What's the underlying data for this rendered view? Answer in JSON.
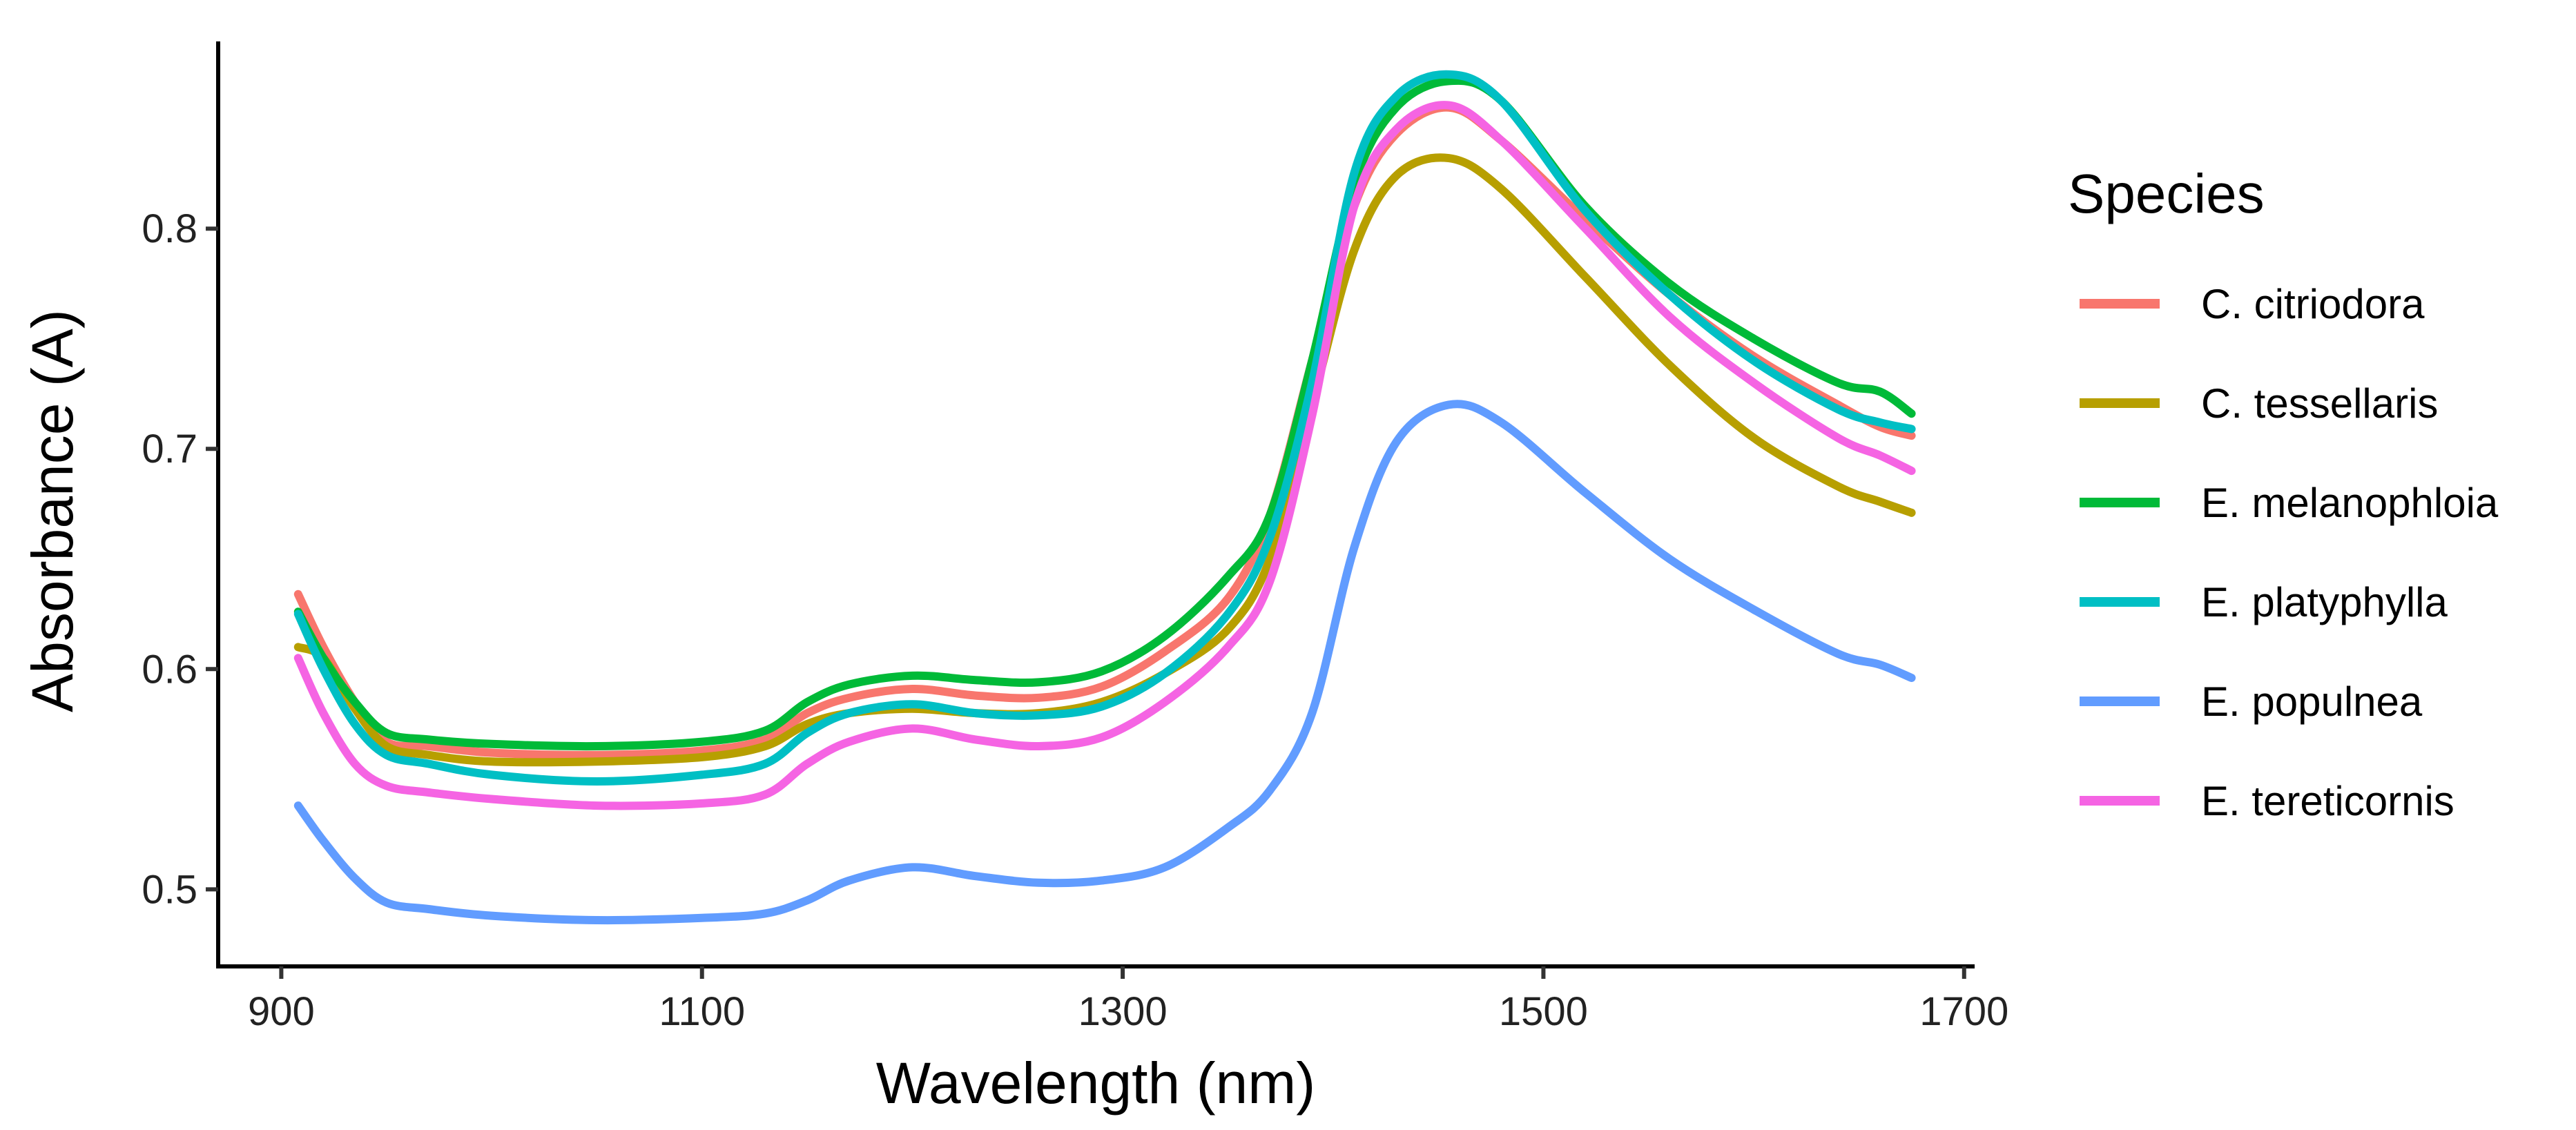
{
  "chart_data": {
    "type": "line",
    "title": "",
    "xlabel": "Wavelength (nm)",
    "ylabel": "Absorbance (A)",
    "xlim": [
      870,
      1705
    ],
    "ylim": [
      0.465,
      0.885
    ],
    "xticks": [
      900,
      1100,
      1300,
      1500,
      1700
    ],
    "xtick_labels": [
      "900",
      "1100",
      "1300",
      "1500",
      "1700"
    ],
    "yticks": [
      0.5,
      0.6,
      0.7,
      0.8
    ],
    "ytick_labels": [
      "0.5",
      "0.6",
      "0.7",
      "0.8"
    ],
    "grid": false,
    "legend": {
      "title": "Species",
      "placement": "right"
    },
    "x": [
      908,
      920,
      935,
      950,
      970,
      1000,
      1050,
      1100,
      1130,
      1150,
      1170,
      1200,
      1230,
      1260,
      1290,
      1320,
      1350,
      1370,
      1390,
      1410,
      1430,
      1455,
      1480,
      1520,
      1560,
      1600,
      1640,
      1660,
      1675
    ],
    "series": [
      {
        "name": "C. citriodora",
        "color": "#F8766D",
        "values": [
          0.634,
          0.61,
          0.585,
          0.567,
          0.565,
          0.562,
          0.561,
          0.563,
          0.568,
          0.58,
          0.587,
          0.591,
          0.588,
          0.587,
          0.592,
          0.608,
          0.632,
          0.67,
          0.74,
          0.81,
          0.843,
          0.855,
          0.84,
          0.804,
          0.77,
          0.742,
          0.72,
          0.71,
          0.706
        ]
      },
      {
        "name": "C. tessellaris",
        "color": "#B79F00",
        "values": [
          0.61,
          0.605,
          0.582,
          0.565,
          0.561,
          0.558,
          0.558,
          0.56,
          0.565,
          0.575,
          0.58,
          0.582,
          0.58,
          0.58,
          0.585,
          0.598,
          0.618,
          0.65,
          0.72,
          0.79,
          0.824,
          0.832,
          0.818,
          0.778,
          0.738,
          0.705,
          0.683,
          0.676,
          0.671
        ]
      },
      {
        "name": "E. melanophloia",
        "color": "#00BA38",
        "values": [
          0.626,
          0.605,
          0.585,
          0.571,
          0.568,
          0.566,
          0.565,
          0.567,
          0.572,
          0.585,
          0.593,
          0.597,
          0.595,
          0.594,
          0.599,
          0.615,
          0.642,
          0.67,
          0.74,
          0.82,
          0.855,
          0.867,
          0.858,
          0.81,
          0.775,
          0.75,
          0.73,
          0.726,
          0.716
        ]
      },
      {
        "name": "E. platyphylla",
        "color": "#00BFC4",
        "values": [
          0.625,
          0.6,
          0.575,
          0.561,
          0.557,
          0.552,
          0.549,
          0.552,
          0.557,
          0.571,
          0.58,
          0.584,
          0.58,
          0.579,
          0.583,
          0.598,
          0.625,
          0.66,
          0.73,
          0.825,
          0.86,
          0.87,
          0.858,
          0.808,
          0.77,
          0.74,
          0.718,
          0.712,
          0.709
        ]
      },
      {
        "name": "E. populnea",
        "color": "#619CFF",
        "values": [
          0.538,
          0.522,
          0.505,
          0.494,
          0.491,
          0.488,
          0.486,
          0.487,
          0.489,
          0.495,
          0.504,
          0.51,
          0.506,
          0.503,
          0.504,
          0.51,
          0.528,
          0.545,
          0.58,
          0.655,
          0.703,
          0.72,
          0.712,
          0.68,
          0.65,
          0.627,
          0.607,
          0.602,
          0.596
        ]
      },
      {
        "name": "E. tereticornis",
        "color": "#F564E3",
        "values": [
          0.605,
          0.58,
          0.557,
          0.547,
          0.544,
          0.541,
          0.538,
          0.539,
          0.543,
          0.557,
          0.567,
          0.573,
          0.568,
          0.565,
          0.569,
          0.585,
          0.61,
          0.64,
          0.715,
          0.81,
          0.845,
          0.856,
          0.84,
          0.8,
          0.76,
          0.73,
          0.705,
          0.697,
          0.69
        ]
      }
    ]
  }
}
